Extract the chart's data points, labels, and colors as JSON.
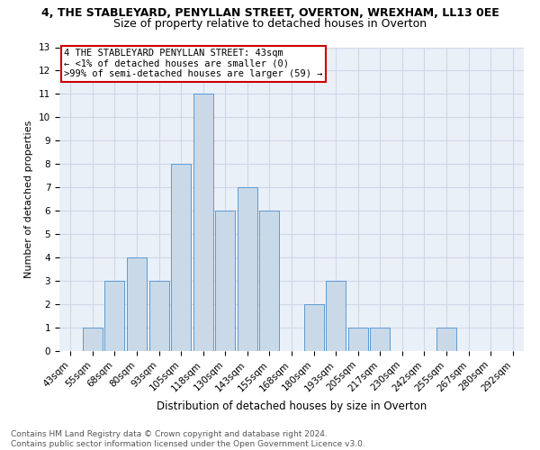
{
  "title1": "4, THE STABLEYARD, PENYLLAN STREET, OVERTON, WREXHAM, LL13 0EE",
  "title2": "Size of property relative to detached houses in Overton",
  "xlabel": "Distribution of detached houses by size in Overton",
  "ylabel": "Number of detached properties",
  "categories": [
    "43sqm",
    "55sqm",
    "68sqm",
    "80sqm",
    "93sqm",
    "105sqm",
    "118sqm",
    "130sqm",
    "143sqm",
    "155sqm",
    "168sqm",
    "180sqm",
    "193sqm",
    "205sqm",
    "217sqm",
    "230sqm",
    "242sqm",
    "255sqm",
    "267sqm",
    "280sqm",
    "292sqm"
  ],
  "values": [
    0,
    1,
    3,
    4,
    3,
    8,
    11,
    6,
    7,
    6,
    0,
    2,
    3,
    1,
    1,
    0,
    0,
    1,
    0,
    0,
    0
  ],
  "bar_color": "#c9d9e8",
  "bar_edge_color": "#5b9bd5",
  "ylim": [
    0,
    13
  ],
  "yticks": [
    0,
    1,
    2,
    3,
    4,
    5,
    6,
    7,
    8,
    9,
    10,
    11,
    12,
    13
  ],
  "annotation_box_text": "4 THE STABLEYARD PENYLLAN STREET: 43sqm\n← <1% of detached houses are smaller (0)\n>99% of semi-detached houses are larger (59) →",
  "annotation_box_color": "#ffffff",
  "annotation_box_edge_color": "#cc0000",
  "footer": "Contains HM Land Registry data © Crown copyright and database right 2024.\nContains public sector information licensed under the Open Government Licence v3.0.",
  "grid_color": "#d0d8e8",
  "background_color": "#eaf0f8",
  "title1_fontsize": 9,
  "title2_fontsize": 9,
  "ylabel_fontsize": 8,
  "xlabel_fontsize": 8.5,
  "tick_fontsize": 7.5,
  "annot_fontsize": 7.5,
  "footer_fontsize": 6.5
}
